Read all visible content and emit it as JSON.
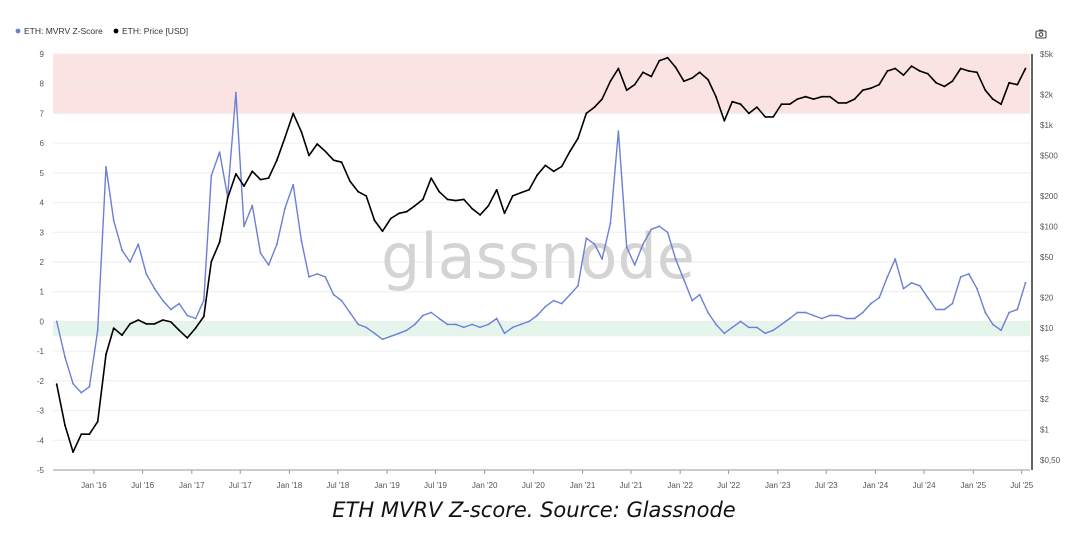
{
  "legend": [
    {
      "label": "ETH: MVRV Z-Score",
      "color": "#6b7fd7"
    },
    {
      "label": "ETH: Price [USD]",
      "color": "#000000"
    }
  ],
  "watermark": "glassnode",
  "camera_icon": "camera-icon",
  "caption": "ETH MVRV Z-score. Source: Glassnode",
  "colors": {
    "zscore": "#6b7fd7",
    "price": "#000000",
    "overvalued_band": "#fbe3e3",
    "undervalued_band": "#e6f5ec",
    "grid": "#ededed"
  },
  "chart_data": {
    "type": "line",
    "x_tick_labels": [
      "Jan '16",
      "Jul '16",
      "Jan '17",
      "Jul '17",
      "Jan '18",
      "Jul '18",
      "Jan '19",
      "Jul '19",
      "Jan '20",
      "Jul '20",
      "Jan '21",
      "Jul '21",
      "Jan '22",
      "Jul '22",
      "Jan '23",
      "Jul '23",
      "Jan '24",
      "Jul '24",
      "Jan '25",
      "Jul '25"
    ],
    "y_left_ticks": [
      "9",
      "8",
      "7",
      "6",
      "5",
      "4",
      "3",
      "2",
      "1",
      "0",
      "-1",
      "-2",
      "-3",
      "-4",
      "-5"
    ],
    "y_right_ticks": [
      "$5k",
      "$2k",
      "$1k",
      "$500",
      "$200",
      "$100",
      "$50",
      "$20",
      "$10",
      "$5",
      "$2",
      "$1",
      "$0,50"
    ],
    "y_left_range": [
      -5,
      9
    ],
    "y_right_range_usd": [
      0.4,
      5000
    ],
    "y_right_scale": "log",
    "bands": [
      {
        "from": 7,
        "to": 9,
        "zone": "overvalued"
      },
      {
        "from": -0.5,
        "to": 0,
        "zone": "undervalued"
      }
    ],
    "series": [
      {
        "name": "ETH: MVRV Z-Score",
        "axis": "left",
        "x": [
          "2015-08",
          "2015-09",
          "2015-10",
          "2015-11",
          "2015-12",
          "2016-01",
          "2016-02",
          "2016-03",
          "2016-04",
          "2016-05",
          "2016-06",
          "2016-07",
          "2016-08",
          "2016-09",
          "2016-10",
          "2016-11",
          "2016-12",
          "2017-01",
          "2017-02",
          "2017-03",
          "2017-04",
          "2017-05",
          "2017-06",
          "2017-07",
          "2017-08",
          "2017-09",
          "2017-10",
          "2017-11",
          "2017-12",
          "2018-01",
          "2018-02",
          "2018-03",
          "2018-04",
          "2018-05",
          "2018-06",
          "2018-07",
          "2018-08",
          "2018-09",
          "2018-10",
          "2018-11",
          "2018-12",
          "2019-01",
          "2019-02",
          "2019-03",
          "2019-04",
          "2019-05",
          "2019-06",
          "2019-07",
          "2019-08",
          "2019-09",
          "2019-10",
          "2019-11",
          "2019-12",
          "2020-01",
          "2020-02",
          "2020-03",
          "2020-04",
          "2020-05",
          "2020-06",
          "2020-07",
          "2020-08",
          "2020-09",
          "2020-10",
          "2020-11",
          "2020-12",
          "2021-01",
          "2021-02",
          "2021-03",
          "2021-04",
          "2021-05",
          "2021-06",
          "2021-07",
          "2021-08",
          "2021-09",
          "2021-10",
          "2021-11",
          "2021-12",
          "2022-01",
          "2022-02",
          "2022-03",
          "2022-04",
          "2022-05",
          "2022-06",
          "2022-07",
          "2022-08",
          "2022-09",
          "2022-10",
          "2022-11",
          "2022-12",
          "2023-01",
          "2023-02",
          "2023-03",
          "2023-04",
          "2023-05",
          "2023-06",
          "2023-07",
          "2023-08",
          "2023-09",
          "2023-10",
          "2023-11",
          "2023-12",
          "2024-01",
          "2024-02",
          "2024-03",
          "2024-04",
          "2024-05",
          "2024-06",
          "2024-07",
          "2024-08",
          "2024-09",
          "2024-10",
          "2024-11",
          "2024-12",
          "2025-01",
          "2025-02",
          "2025-03",
          "2025-04",
          "2025-05",
          "2025-06",
          "2025-07"
        ],
        "values": [
          0,
          -1.2,
          -2.1,
          -2.4,
          -2.2,
          -0.3,
          5.2,
          3.4,
          2.4,
          2,
          2.6,
          1.6,
          1.1,
          0.7,
          0.4,
          0.6,
          0.2,
          0.1,
          0.7,
          4.9,
          5.7,
          4.2,
          7.7,
          3.2,
          3.9,
          2.3,
          1.9,
          2.6,
          3.8,
          4.6,
          2.7,
          1.5,
          1.6,
          1.5,
          0.9,
          0.7,
          0.3,
          -0.1,
          -0.2,
          -0.4,
          -0.6,
          -0.5,
          -0.4,
          -0.3,
          -0.1,
          0.2,
          0.3,
          0.1,
          -0.1,
          -0.1,
          -0.2,
          -0.1,
          -0.2,
          -0.1,
          0.1,
          -0.4,
          -0.2,
          -0.1,
          0,
          0.2,
          0.5,
          0.7,
          0.6,
          0.9,
          1.2,
          2.8,
          2.6,
          2.1,
          3.3,
          6.4,
          2.5,
          1.9,
          2.6,
          3.1,
          3.2,
          3,
          2.1,
          1.4,
          0.7,
          0.9,
          0.3,
          -0.1,
          -0.4,
          -0.2,
          0,
          -0.2,
          -0.2,
          -0.4,
          -0.3,
          -0.1,
          0.1,
          0.3,
          0.3,
          0.2,
          0.1,
          0.2,
          0.2,
          0.1,
          0.1,
          0.3,
          0.6,
          0.8,
          1.5,
          2.1,
          1.1,
          1.3,
          1.2,
          0.8,
          0.4,
          0.4,
          0.6,
          1.5,
          1.6,
          1.1,
          0.3,
          -0.1,
          -0.3,
          0.3,
          0.4,
          1.3
        ]
      },
      {
        "name": "ETH: Price [USD]",
        "axis": "right",
        "x": [
          "2015-08",
          "2015-09",
          "2015-10",
          "2015-11",
          "2015-12",
          "2016-01",
          "2016-02",
          "2016-03",
          "2016-04",
          "2016-05",
          "2016-06",
          "2016-07",
          "2016-08",
          "2016-09",
          "2016-10",
          "2016-11",
          "2016-12",
          "2017-01",
          "2017-02",
          "2017-03",
          "2017-04",
          "2017-05",
          "2017-06",
          "2017-07",
          "2017-08",
          "2017-09",
          "2017-10",
          "2017-11",
          "2017-12",
          "2018-01",
          "2018-02",
          "2018-03",
          "2018-04",
          "2018-05",
          "2018-06",
          "2018-07",
          "2018-08",
          "2018-09",
          "2018-10",
          "2018-11",
          "2018-12",
          "2019-01",
          "2019-02",
          "2019-03",
          "2019-04",
          "2019-05",
          "2019-06",
          "2019-07",
          "2019-08",
          "2019-09",
          "2019-10",
          "2019-11",
          "2019-12",
          "2020-01",
          "2020-02",
          "2020-03",
          "2020-04",
          "2020-05",
          "2020-06",
          "2020-07",
          "2020-08",
          "2020-09",
          "2020-10",
          "2020-11",
          "2020-12",
          "2021-01",
          "2021-02",
          "2021-03",
          "2021-04",
          "2021-05",
          "2021-06",
          "2021-07",
          "2021-08",
          "2021-09",
          "2021-10",
          "2021-11",
          "2021-12",
          "2022-01",
          "2022-02",
          "2022-03",
          "2022-04",
          "2022-05",
          "2022-06",
          "2022-07",
          "2022-08",
          "2022-09",
          "2022-10",
          "2022-11",
          "2022-12",
          "2023-01",
          "2023-02",
          "2023-03",
          "2023-04",
          "2023-05",
          "2023-06",
          "2023-07",
          "2023-08",
          "2023-09",
          "2023-10",
          "2023-11",
          "2023-12",
          "2024-01",
          "2024-02",
          "2024-03",
          "2024-04",
          "2024-05",
          "2024-06",
          "2024-07",
          "2024-08",
          "2024-09",
          "2024-10",
          "2024-11",
          "2024-12",
          "2025-01",
          "2025-02",
          "2025-03",
          "2025-04",
          "2025-05",
          "2025-06",
          "2025-07"
        ],
        "values": [
          2.8,
          1.1,
          0.6,
          0.9,
          0.9,
          1.2,
          5.5,
          10,
          8.5,
          11,
          12,
          11,
          11,
          12,
          11.5,
          9.5,
          8,
          10,
          13,
          45,
          70,
          190,
          330,
          250,
          350,
          290,
          300,
          450,
          750,
          1300,
          850,
          500,
          650,
          550,
          450,
          430,
          280,
          220,
          200,
          115,
          90,
          120,
          135,
          140,
          160,
          185,
          300,
          220,
          185,
          180,
          185,
          150,
          130,
          160,
          230,
          135,
          200,
          215,
          230,
          320,
          400,
          350,
          390,
          550,
          740,
          1300,
          1500,
          1800,
          2700,
          3600,
          2200,
          2500,
          3300,
          3000,
          4300,
          4600,
          3700,
          2700,
          2900,
          3300,
          2800,
          1900,
          1100,
          1700,
          1600,
          1300,
          1500,
          1200,
          1200,
          1600,
          1600,
          1800,
          1900,
          1800,
          1900,
          1900,
          1650,
          1650,
          1800,
          2200,
          2300,
          2500,
          3400,
          3600,
          3100,
          3800,
          3400,
          3200,
          2600,
          2400,
          2700,
          3600,
          3400,
          3300,
          2200,
          1800,
          1600,
          2600,
          2500,
          3600
        ]
      }
    ]
  }
}
